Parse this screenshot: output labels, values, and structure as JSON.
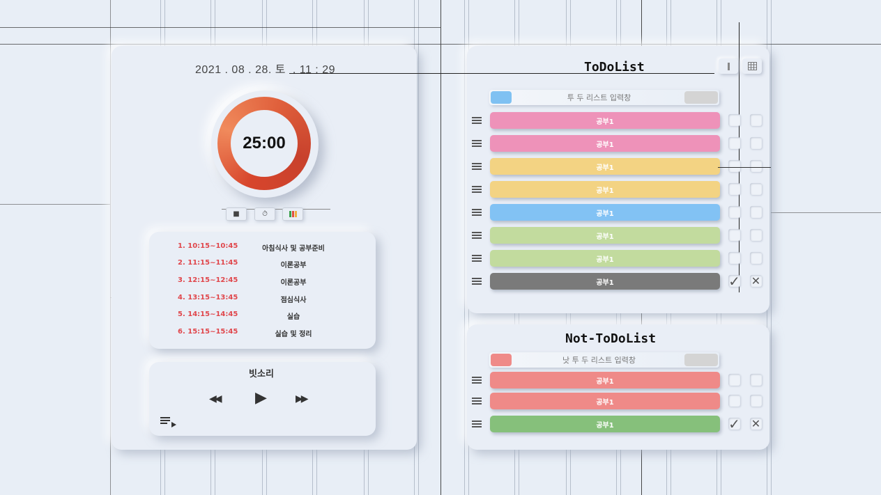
{
  "clock": {
    "text": "2021 . 08 . 28. 토  . 11 : 29"
  },
  "timer": {
    "value": "25:00",
    "ring_color": "#d7452c"
  },
  "timer_controls": [
    {
      "icon": "stop-icon",
      "glyph": "■"
    },
    {
      "icon": "stopwatch-icon",
      "glyph": "⏱"
    },
    {
      "icon": "color-palette-icon",
      "glyph": ""
    }
  ],
  "schedule": [
    {
      "time": "1. 10:15~10:45",
      "task": "아침식사 및 공부준비"
    },
    {
      "time": "2. 11:15~11:45",
      "task": "이론공부"
    },
    {
      "time": "3. 12:15~12:45",
      "task": "이론공부"
    },
    {
      "time": "4. 13:15~13:45",
      "task": "점심식사"
    },
    {
      "time": "5. 14:15~14:45",
      "task": "실습"
    },
    {
      "time": "6. 15:15~15:45",
      "task": "실습 및 정리"
    }
  ],
  "player": {
    "title": "빗소리",
    "rewind": "◀◀",
    "play": "▶",
    "forward": "▶▶",
    "playlist_icon": "playlist-icon"
  },
  "todo": {
    "title": "ToDoList",
    "input_placeholder": "투 두 리스트 입력창",
    "input_color": "#7fc1f2",
    "items": [
      {
        "label": "공부1",
        "color": "#ee92b9",
        "done": false
      },
      {
        "label": "공부1",
        "color": "#ee92b9",
        "done": false
      },
      {
        "label": "공부1",
        "color": "#f3d383",
        "done": false
      },
      {
        "label": "공부1",
        "color": "#f3d383",
        "done": false
      },
      {
        "label": "공부1",
        "color": "#82c2f4",
        "done": false
      },
      {
        "label": "공부1",
        "color": "#c2db9e",
        "done": false
      },
      {
        "label": "공부1",
        "color": "#c2db9e",
        "done": false
      },
      {
        "label": "공부1",
        "color": "#7a7a7a",
        "done": true
      }
    ]
  },
  "not_todo": {
    "title": "Not-ToDoList",
    "input_placeholder": "낫 투 두 리스트 입력창",
    "input_color": "#ef8a88",
    "items": [
      {
        "label": "공부1",
        "color": "#ef8a88",
        "done": false
      },
      {
        "label": "공부1",
        "color": "#ef8a88",
        "done": false
      },
      {
        "label": "공부1",
        "color": "#86c07b",
        "done": true
      }
    ]
  },
  "check_glyph": "✓",
  "x_glyph": "✕"
}
